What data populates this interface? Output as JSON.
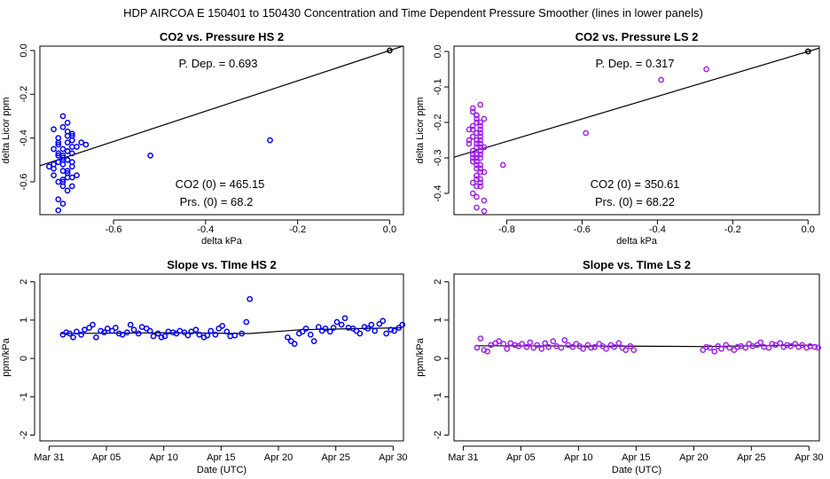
{
  "main_title": "HDP   AIRCOA E   150401 to 150430   Concentration and Time Dependent Pressure Smoother (lines in lower panels)",
  "colors": {
    "hs": "#0000ff",
    "ls": "#a020f0",
    "line": "#000000"
  },
  "chart_data": [
    {
      "type": "scatter",
      "title": "CO2 vs. Pressure HS 2",
      "xlabel": "delta kPa",
      "ylabel": "delta Licor ppm",
      "xlim": [
        -0.76,
        0.03
      ],
      "ylim": [
        -0.75,
        0.02
      ],
      "xticks": [
        -0.6,
        -0.4,
        -0.2,
        0.0
      ],
      "xtick_labels": [
        "-0.6",
        "-0.4",
        "-0.2",
        "0.0"
      ],
      "yticks": [
        0.0,
        -0.2,
        -0.4,
        -0.6
      ],
      "ytick_labels": [
        "0.0",
        "-0.2",
        "-0.4",
        "-0.6"
      ],
      "annotations": [
        "P. Dep. =  0.693",
        "CO2 (0) =  465.15",
        "Prs. (0) =  68.2"
      ],
      "fit_line": {
        "slope": 0.693,
        "intercept": 0.0
      },
      "reference_point": [
        0.0,
        0.0
      ],
      "points": {
        "x": [
          -0.69,
          -0.7,
          -0.71,
          -0.72,
          -0.73,
          -0.71,
          -0.7,
          -0.69,
          -0.72,
          -0.73,
          -0.7,
          -0.71,
          -0.68,
          -0.69,
          -0.72,
          -0.74,
          -0.7,
          -0.71,
          -0.73,
          -0.69,
          -0.7,
          -0.71,
          -0.72,
          -0.7,
          -0.69,
          -0.71,
          -0.73,
          -0.72,
          -0.7,
          -0.69,
          -0.68,
          -0.71,
          -0.72,
          -0.7,
          -0.71,
          -0.73,
          -0.7,
          -0.69,
          -0.71,
          -0.72,
          -0.7,
          -0.71,
          -0.67,
          -0.66,
          -0.72,
          -0.71,
          -0.7,
          -0.69,
          -0.71,
          -0.7,
          -0.72,
          -0.69,
          -0.52,
          -0.26
        ],
        "y": [
          -0.38,
          -0.42,
          -0.45,
          -0.48,
          -0.52,
          -0.55,
          -0.5,
          -0.47,
          -0.4,
          -0.36,
          -0.33,
          -0.3,
          -0.44,
          -0.58,
          -0.6,
          -0.53,
          -0.46,
          -0.49,
          -0.57,
          -0.62,
          -0.64,
          -0.7,
          -0.73,
          -0.55,
          -0.41,
          -0.52,
          -0.54,
          -0.43,
          -0.39,
          -0.51,
          -0.57,
          -0.62,
          -0.47,
          -0.5,
          -0.6,
          -0.45,
          -0.56,
          -0.53,
          -0.59,
          -0.42,
          -0.37,
          -0.48,
          -0.42,
          -0.43,
          -0.51,
          -0.35,
          -0.46,
          -0.44,
          -0.5,
          -0.58,
          -0.68,
          -0.39,
          -0.48,
          -0.41
        ]
      }
    },
    {
      "type": "scatter",
      "title": "CO2 vs. Pressure LS 2",
      "xlabel": "delta kPa",
      "ylabel": "delta Licor ppm",
      "xlim": [
        -0.94,
        0.03
      ],
      "ylim": [
        -0.46,
        0.015
      ],
      "xticks": [
        -0.8,
        -0.6,
        -0.4,
        -0.2,
        0.0
      ],
      "xtick_labels": [
        "-0.8",
        "-0.6",
        "-0.4",
        "-0.2",
        "0.0"
      ],
      "yticks": [
        0.0,
        -0.1,
        -0.2,
        -0.3,
        -0.4
      ],
      "ytick_labels": [
        "0.0",
        "-0.1",
        "-0.2",
        "-0.3",
        "-0.4"
      ],
      "annotations": [
        "P. Dep. =  0.317",
        "CO2 (0) =  350.61",
        "Prs. (0) =  68.22"
      ],
      "fit_line": {
        "slope": 0.317,
        "intercept": 0.0
      },
      "reference_point": [
        0.0,
        0.0
      ],
      "points": {
        "x": [
          -0.89,
          -0.88,
          -0.87,
          -0.9,
          -0.89,
          -0.88,
          -0.87,
          -0.89,
          -0.88,
          -0.87,
          -0.9,
          -0.88,
          -0.87,
          -0.89,
          -0.88,
          -0.86,
          -0.89,
          -0.87,
          -0.88,
          -0.89,
          -0.87,
          -0.88,
          -0.89,
          -0.87,
          -0.86,
          -0.88,
          -0.9,
          -0.87,
          -0.88,
          -0.89,
          -0.87,
          -0.88,
          -0.86,
          -0.89,
          -0.88,
          -0.87,
          -0.88,
          -0.89,
          -0.87,
          -0.88,
          -0.87,
          -0.86,
          -0.88,
          -0.87,
          -0.89,
          -0.87,
          -0.88,
          -0.87,
          -0.89,
          -0.88,
          -0.87,
          -0.88,
          -0.86,
          -0.87,
          -0.88,
          -0.89,
          -0.87,
          -0.88,
          -0.87,
          -0.81,
          -0.59,
          -0.39,
          -0.27
        ],
        "y": [
          -0.16,
          -0.18,
          -0.2,
          -0.22,
          -0.24,
          -0.26,
          -0.28,
          -0.3,
          -0.32,
          -0.34,
          -0.25,
          -0.27,
          -0.29,
          -0.31,
          -0.33,
          -0.19,
          -0.21,
          -0.23,
          -0.35,
          -0.37,
          -0.36,
          -0.38,
          -0.4,
          -0.15,
          -0.42,
          -0.44,
          -0.26,
          -0.28,
          -0.3,
          -0.22,
          -0.24,
          -0.2,
          -0.27,
          -0.29,
          -0.31,
          -0.33,
          -0.25,
          -0.17,
          -0.21,
          -0.23,
          -0.32,
          -0.34,
          -0.36,
          -0.26,
          -0.28,
          -0.3,
          -0.19,
          -0.22,
          -0.24,
          -0.18,
          -0.38,
          -0.41,
          -0.45,
          -0.27,
          -0.29,
          -0.31,
          -0.25,
          -0.35,
          -0.37,
          -0.32,
          -0.23,
          -0.08,
          -0.05
        ]
      }
    },
    {
      "type": "scatter",
      "title": "Slope vs. TIme HS 2",
      "xlabel": "Date (UTC)",
      "ylabel": "ppm/kPa",
      "xlim": [
        -0.8,
        30.9
      ],
      "ylim": [
        -2.15,
        2.2
      ],
      "xticks": [
        0,
        5,
        10,
        15,
        20,
        25,
        30
      ],
      "xtick_labels": [
        "Mar 31",
        "Apr 05",
        "Apr 10",
        "Apr 15",
        "Apr 20",
        "Apr 25",
        "Apr 30"
      ],
      "yticks": [
        -2,
        -1,
        0,
        1,
        2
      ],
      "ytick_labels": [
        "-2",
        "-1",
        "0",
        "1",
        "2"
      ],
      "smoother": {
        "x": [
          1.0,
          10.0,
          17.5,
          22.0,
          30.7
        ],
        "y": [
          0.65,
          0.67,
          0.65,
          0.75,
          0.8
        ]
      },
      "points": {
        "x": [
          1.2,
          1.5,
          1.8,
          2.1,
          2.4,
          2.8,
          3.1,
          3.5,
          3.8,
          4.1,
          4.5,
          4.8,
          5.1,
          5.5,
          5.8,
          6.1,
          6.4,
          6.8,
          7.1,
          7.4,
          7.8,
          8.1,
          8.5,
          8.8,
          9.1,
          9.5,
          9.8,
          10.1,
          10.4,
          10.8,
          11.1,
          11.4,
          11.8,
          12.1,
          12.4,
          12.8,
          13.1,
          13.5,
          13.8,
          14.1,
          14.5,
          14.8,
          15.1,
          15.5,
          15.8,
          16.2,
          16.8,
          17.2,
          17.5,
          20.8,
          21.1,
          21.4,
          21.8,
          22.1,
          22.4,
          22.8,
          23.1,
          23.5,
          23.8,
          24.1,
          24.5,
          24.8,
          25.1,
          25.5,
          25.8,
          26.1,
          26.5,
          26.8,
          27.1,
          27.5,
          27.8,
          28.1,
          28.4,
          28.8,
          29.1,
          29.4,
          29.8,
          30.1,
          30.5,
          30.8
        ],
        "y": [
          0.62,
          0.68,
          0.65,
          0.55,
          0.7,
          0.62,
          0.75,
          0.8,
          0.88,
          0.55,
          0.72,
          0.68,
          0.78,
          0.72,
          0.8,
          0.65,
          0.62,
          0.68,
          0.88,
          0.75,
          0.65,
          0.82,
          0.78,
          0.72,
          0.58,
          0.65,
          0.55,
          0.58,
          0.7,
          0.68,
          0.65,
          0.72,
          0.68,
          0.6,
          0.7,
          0.75,
          0.62,
          0.55,
          0.6,
          0.72,
          0.62,
          0.78,
          0.85,
          0.7,
          0.58,
          0.6,
          0.65,
          0.95,
          1.55,
          0.55,
          0.45,
          0.38,
          0.65,
          0.7,
          0.78,
          0.62,
          0.45,
          0.82,
          0.72,
          0.78,
          0.7,
          0.8,
          0.95,
          0.88,
          1.05,
          0.8,
          0.78,
          0.72,
          0.65,
          0.82,
          0.78,
          0.88,
          0.72,
          0.9,
          0.98,
          0.65,
          0.75,
          0.72,
          0.8,
          0.88
        ]
      }
    },
    {
      "type": "scatter",
      "title": "Slope vs. TIme LS 2",
      "xlabel": "Date (UTC)",
      "ylabel": "ppm/kPa",
      "xlim": [
        -0.8,
        30.9
      ],
      "ylim": [
        -2.15,
        2.2
      ],
      "xticks": [
        0,
        5,
        10,
        15,
        20,
        25,
        30
      ],
      "xtick_labels": [
        "Mar 31",
        "Apr 05",
        "Apr 10",
        "Apr 15",
        "Apr 20",
        "Apr 25",
        "Apr 30"
      ],
      "yticks": [
        -2,
        -1,
        0,
        1,
        2
      ],
      "ytick_labels": [
        "-2",
        "-1",
        "0",
        "1",
        "2"
      ],
      "smoother": {
        "x": [
          1.0,
          14.5,
          20.8,
          30.7
        ],
        "y": [
          0.33,
          0.32,
          0.31,
          0.35
        ]
      },
      "points": {
        "x": [
          1.2,
          1.5,
          1.8,
          2.1,
          2.4,
          2.8,
          3.1,
          3.5,
          3.8,
          4.1,
          4.5,
          4.8,
          5.1,
          5.5,
          5.8,
          6.1,
          6.4,
          6.8,
          7.1,
          7.4,
          7.8,
          8.1,
          8.5,
          8.8,
          9.1,
          9.5,
          9.8,
          10.1,
          10.4,
          10.8,
          11.1,
          11.4,
          11.8,
          12.1,
          12.4,
          12.8,
          13.1,
          13.5,
          13.8,
          14.1,
          14.5,
          14.8,
          20.8,
          21.1,
          21.4,
          21.8,
          22.1,
          22.4,
          22.8,
          23.1,
          23.5,
          23.8,
          24.1,
          24.5,
          24.8,
          25.1,
          25.5,
          25.8,
          26.1,
          26.5,
          26.8,
          27.1,
          27.5,
          27.8,
          28.1,
          28.4,
          28.8,
          29.1,
          29.4,
          29.8,
          30.1,
          30.5,
          30.8
        ],
        "y": [
          0.28,
          0.52,
          0.22,
          0.18,
          0.35,
          0.4,
          0.45,
          0.38,
          0.25,
          0.4,
          0.35,
          0.32,
          0.38,
          0.3,
          0.42,
          0.28,
          0.35,
          0.25,
          0.4,
          0.3,
          0.45,
          0.32,
          0.28,
          0.48,
          0.35,
          0.3,
          0.38,
          0.32,
          0.25,
          0.35,
          0.28,
          0.3,
          0.38,
          0.32,
          0.25,
          0.35,
          0.3,
          0.4,
          0.28,
          0.22,
          0.32,
          0.22,
          0.22,
          0.3,
          0.28,
          0.18,
          0.32,
          0.25,
          0.35,
          0.28,
          0.22,
          0.3,
          0.32,
          0.28,
          0.38,
          0.32,
          0.35,
          0.42,
          0.3,
          0.28,
          0.38,
          0.35,
          0.4,
          0.3,
          0.35,
          0.32,
          0.38,
          0.3,
          0.35,
          0.28,
          0.32,
          0.3,
          0.28
        ]
      }
    }
  ]
}
